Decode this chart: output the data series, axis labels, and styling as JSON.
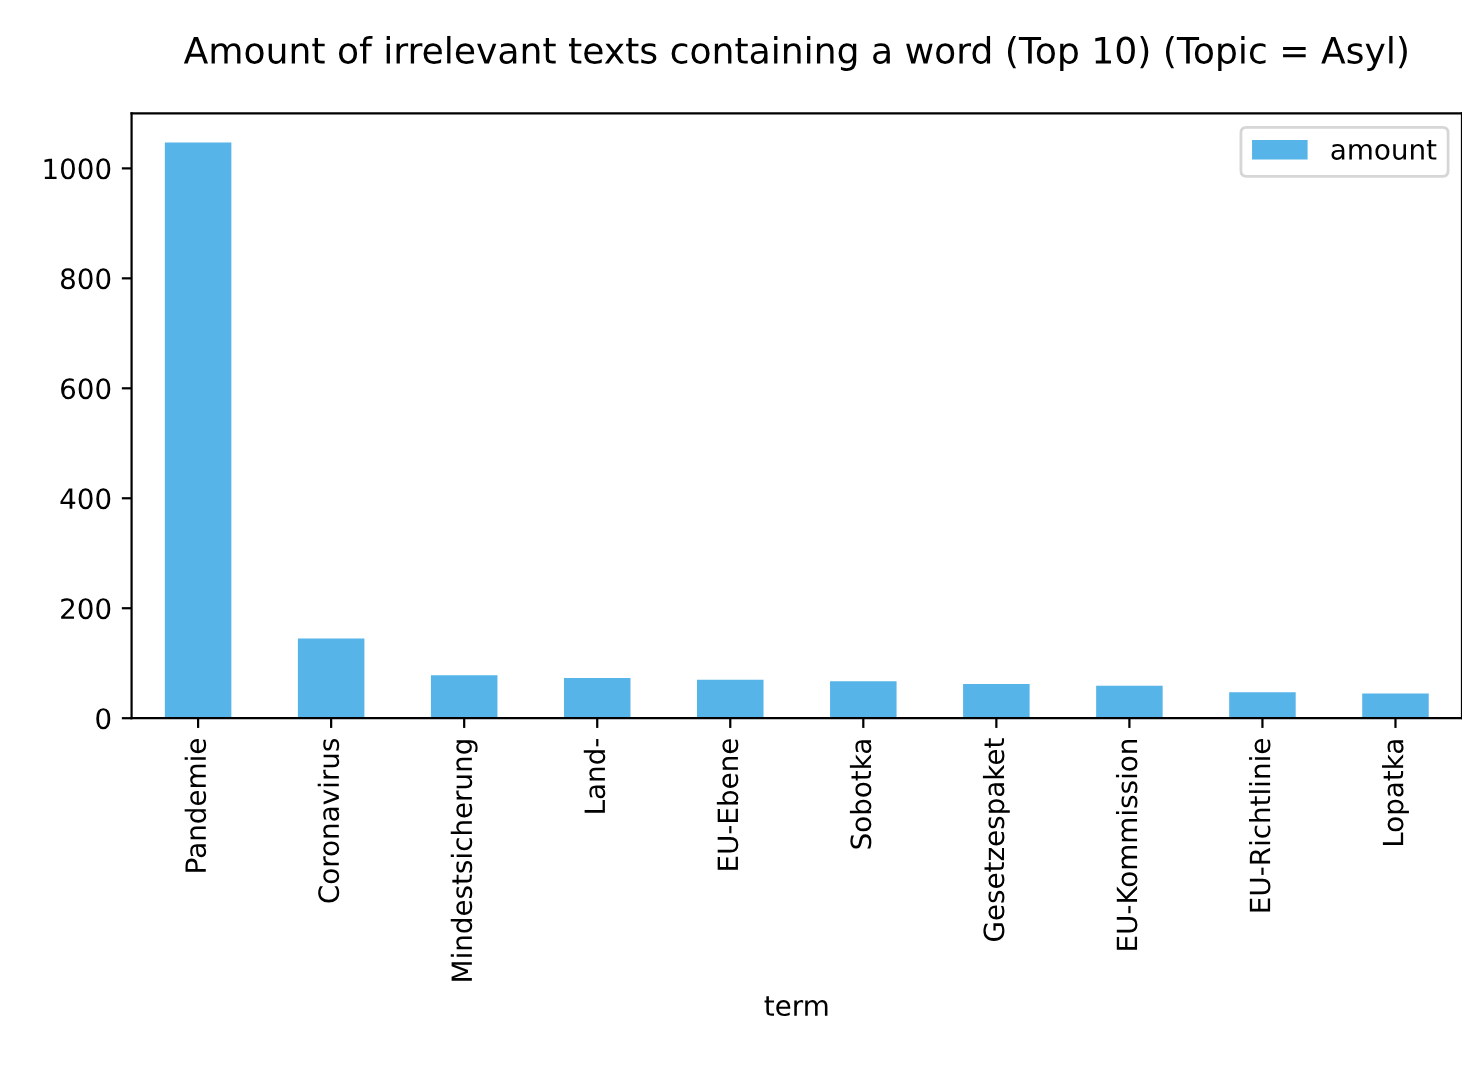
{
  "chart_data": {
    "type": "bar",
    "title": "Amount of irrelevant texts containing a word (Top 10) (Topic = Asyl)",
    "xlabel": "term",
    "categories": [
      "Pandemie",
      "Coronavirus",
      "Mindestsicherung",
      "Land-",
      "EU-Ebene",
      "Sobotka",
      "Gesetzespaket",
      "EU-Kommission",
      "EU-Richtlinie",
      "Lopatka"
    ],
    "series": [
      {
        "name": "amount",
        "color": "#56b4e9",
        "values": [
          1047,
          145,
          78,
          73,
          70,
          67,
          62,
          59,
          47,
          45
        ]
      }
    ],
    "ylim": [
      0,
      1100
    ],
    "yticks": [
      0,
      200,
      400,
      600,
      800,
      1000
    ],
    "legend": "top right",
    "grid": false
  }
}
